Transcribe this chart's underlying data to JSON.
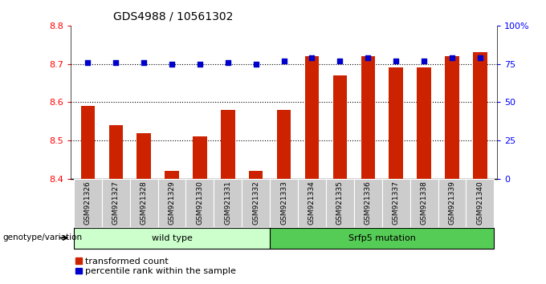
{
  "title": "GDS4988 / 10561302",
  "samples": [
    "GSM921326",
    "GSM921327",
    "GSM921328",
    "GSM921329",
    "GSM921330",
    "GSM921331",
    "GSM921332",
    "GSM921333",
    "GSM921334",
    "GSM921335",
    "GSM921336",
    "GSM921337",
    "GSM921338",
    "GSM921339",
    "GSM921340"
  ],
  "red_values": [
    8.59,
    8.54,
    8.52,
    8.42,
    8.51,
    8.58,
    8.42,
    8.58,
    8.72,
    8.67,
    8.72,
    8.69,
    8.69,
    8.72,
    8.73
  ],
  "blue_values": [
    76,
    76,
    76,
    75,
    75,
    76,
    75,
    77,
    79,
    77,
    79,
    77,
    77,
    79,
    79
  ],
  "ylim_left": [
    8.4,
    8.8
  ],
  "ylim_right": [
    0,
    100
  ],
  "yticks_left": [
    8.4,
    8.5,
    8.6,
    8.7,
    8.8
  ],
  "yticks_right": [
    0,
    25,
    50,
    75,
    100
  ],
  "ytick_right_labels": [
    "0",
    "25",
    "50",
    "75",
    "100%"
  ],
  "grid_lines": [
    8.5,
    8.6,
    8.7
  ],
  "wild_type_count": 7,
  "mutation_count": 8,
  "wild_type_label": "wild type",
  "mutation_label": "Srfp5 mutation",
  "genotype_label": "genotype/variation",
  "legend_red": "transformed count",
  "legend_blue": "percentile rank within the sample",
  "bar_color": "#cc2200",
  "dot_color": "#0000cc",
  "light_green": "#ccffcc",
  "dark_green": "#55cc55",
  "bar_width": 0.5,
  "background_color": "#ffffff",
  "tick_bg_color": "#cccccc"
}
